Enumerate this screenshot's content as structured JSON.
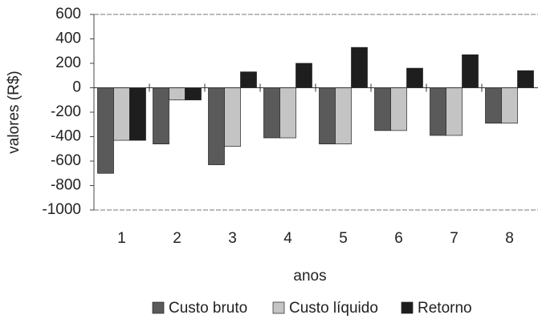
{
  "chart_data": {
    "type": "bar",
    "y_label": "valores (R$)",
    "x_label": "anos",
    "categories": [
      "1",
      "2",
      "3",
      "4",
      "5",
      "6",
      "7",
      "8"
    ],
    "series": [
      {
        "name": "Custo bruto",
        "color": "#5a5a5a",
        "values": [
          -700,
          -460,
          -630,
          -410,
          -460,
          -350,
          -390,
          -290
        ]
      },
      {
        "name": "Custo líquido",
        "color": "#c4c4c4",
        "values": [
          -430,
          -100,
          -480,
          -410,
          -460,
          -350,
          -390,
          -290
        ]
      },
      {
        "name": "Retorno",
        "color": "#1e1e1e",
        "values": [
          -430,
          -100,
          130,
          200,
          330,
          160,
          270,
          140
        ]
      }
    ],
    "ylim": [
      -1000,
      600
    ],
    "yticks": [
      600,
      400,
      200,
      0,
      -200,
      -400,
      -600,
      -800,
      -1000
    ],
    "grid": false,
    "legend": "bottom"
  }
}
